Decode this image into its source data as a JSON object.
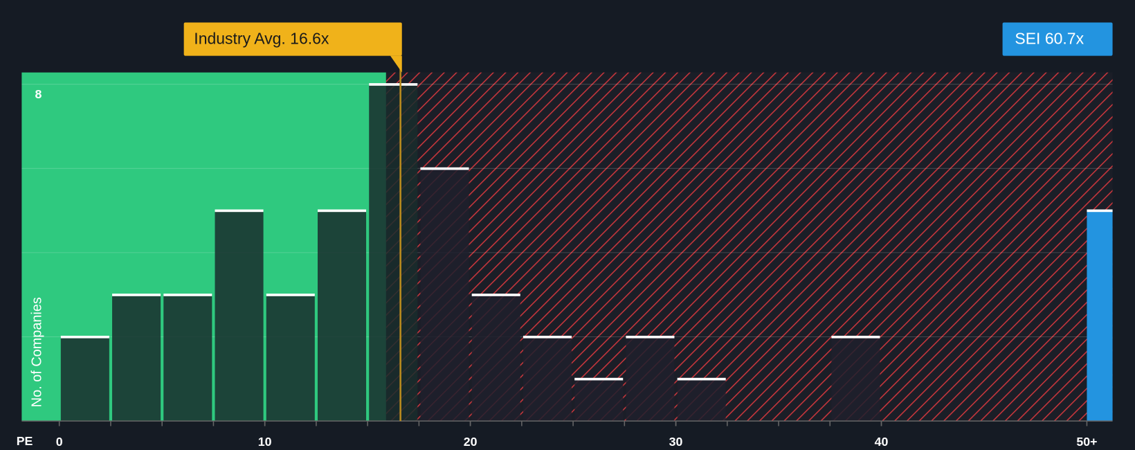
{
  "chart_data": {
    "type": "histogram",
    "x_label": "PE",
    "y_label": "No. of Companies",
    "bins": [
      0,
      2.5,
      5,
      7.5,
      10,
      12.5,
      15,
      17.5,
      20,
      22.5,
      25,
      27.5,
      30,
      32.5,
      35,
      37.5,
      40
    ],
    "values": [
      2,
      3,
      3,
      5,
      3,
      5,
      8,
      6,
      3,
      2,
      1,
      2,
      1,
      0,
      0,
      2
    ],
    "xlim": [
      -1.83,
      51.25
    ],
    "ylim": [
      0,
      8.28
    ],
    "xticks": [
      0,
      10,
      20,
      30,
      40,
      {
        "value": 50,
        "label": "50+"
      }
    ],
    "yticks": [
      {
        "value": 2,
        "label": null
      },
      {
        "value": 4,
        "label": null
      },
      {
        "value": 6,
        "label": null
      },
      8
    ],
    "grid": true,
    "zones": [
      {
        "from": -1.83,
        "to": 15.9,
        "color": "#2fc97f"
      },
      {
        "from": 15.9,
        "to": 51.25,
        "color": "#c8363c"
      }
    ],
    "reference": {
      "label": "Industry Avg. 16.6x",
      "value": 16.6,
      "color": "#f0b21a"
    },
    "highlight": {
      "label": "SEI 60.7x",
      "value": 5,
      "bins": [
        50,
        51.25
      ],
      "color": "#2394e0"
    }
  }
}
